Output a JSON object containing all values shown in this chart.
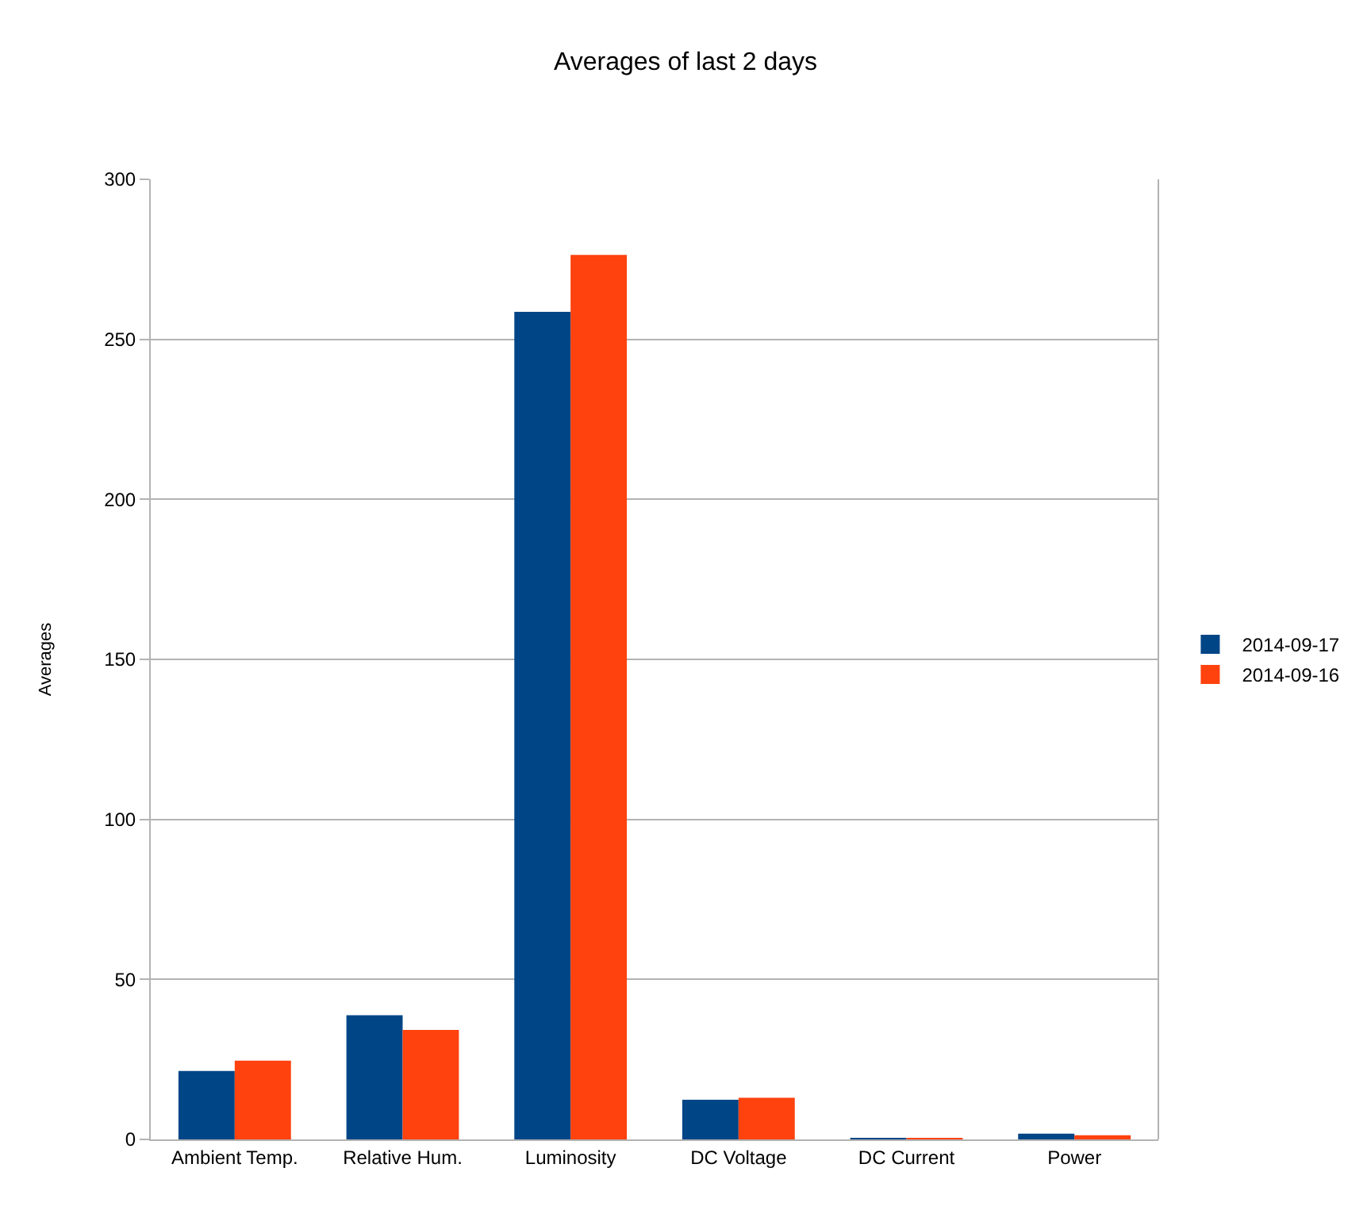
{
  "chart_data": {
    "type": "bar",
    "title": "Averages of last 2 days",
    "ylabel": "Averages",
    "categories": [
      "Ambient Temp.",
      "Relative Hum.",
      "Luminosity",
      "DC Voltage",
      "DC Current",
      "Power"
    ],
    "series": [
      {
        "name": "2014-09-17",
        "color": "#004586",
        "values": [
          21.4,
          38.8,
          258.6,
          12.4,
          0.3,
          1.8
        ]
      },
      {
        "name": "2014-09-16",
        "color": "#ff420e",
        "values": [
          24.6,
          34.2,
          276.4,
          13.0,
          0.3,
          1.3
        ]
      }
    ],
    "ylim": [
      0,
      300
    ],
    "yticks": [
      0,
      50,
      100,
      150,
      200,
      250,
      300
    ],
    "grid": "y",
    "legend": "right"
  }
}
